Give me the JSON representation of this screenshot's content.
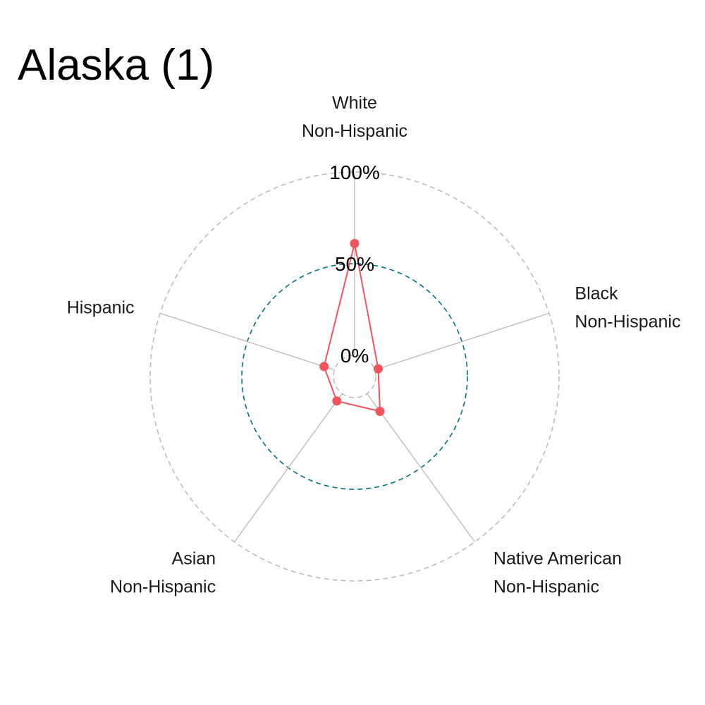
{
  "title": "Alaska (1)",
  "chart_data": {
    "type": "radar",
    "title": "Alaska (1)",
    "axes": [
      {
        "key": "white",
        "label_lines": [
          "White",
          "Non-Hispanic"
        ]
      },
      {
        "key": "black",
        "label_lines": [
          "Black",
          "Non-Hispanic"
        ]
      },
      {
        "key": "native",
        "label_lines": [
          "Native American",
          "Non-Hispanic"
        ]
      },
      {
        "key": "asian",
        "label_lines": [
          "Asian",
          "Non-Hispanic"
        ]
      },
      {
        "key": "hispanic",
        "label_lines": [
          "Hispanic"
        ]
      }
    ],
    "series": [
      {
        "values": [
          61,
          2,
          12,
          5,
          6
        ],
        "color": "#f0545c"
      }
    ],
    "levels": [
      {
        "value": 0,
        "label": "0%",
        "color": "#bdbdbd"
      },
      {
        "value": 50,
        "label": "50%",
        "color": "#007480"
      },
      {
        "value": 100,
        "label": "100%",
        "color": "#bdbdbd"
      }
    ],
    "range": [
      0,
      100
    ],
    "colors": {
      "series": "#f0545c",
      "mid_grid": "#007480",
      "grid": "#bdbdbd",
      "spokes": "#bdbdbd"
    }
  }
}
